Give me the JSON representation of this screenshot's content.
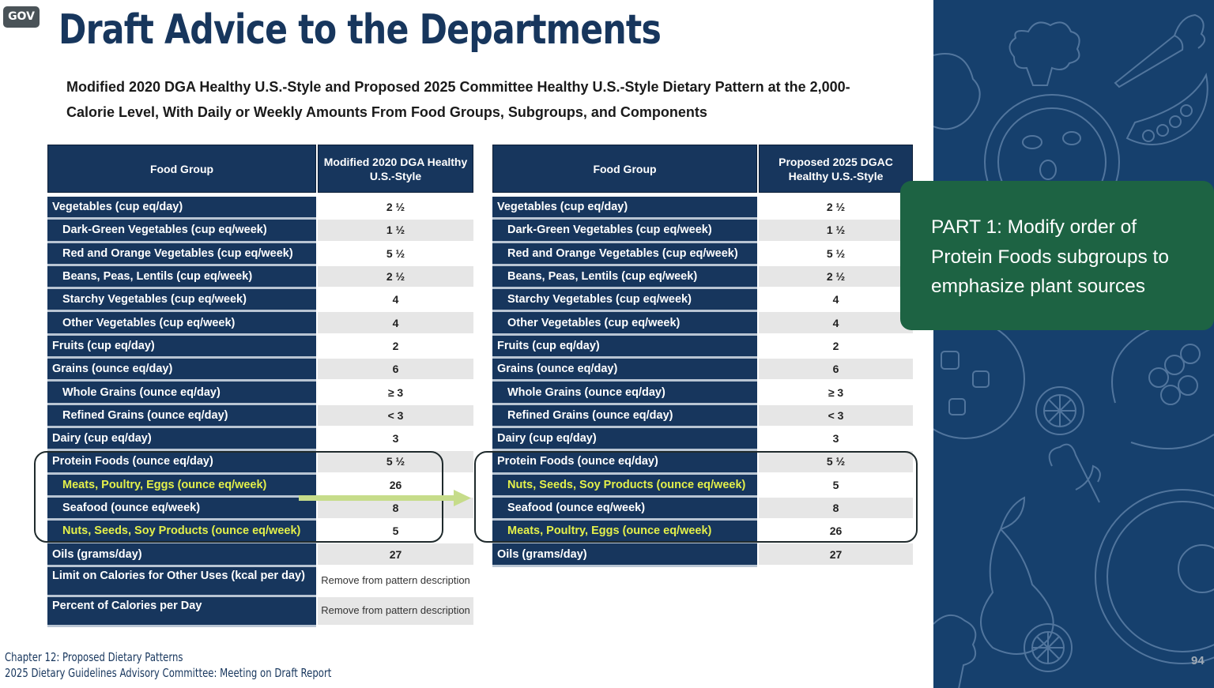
{
  "badge": "GOV",
  "title": "Draft Advice to the Departments",
  "subtitle": "Modified 2020 DGA Healthy U.S.-Style and Proposed 2025 Committee Healthy U.S.-Style Dietary Pattern at the 2,000-Calorie Level, With Daily or Weekly Amounts From Food Groups, Subgroups, and Components",
  "colors": {
    "navy": "#17365d",
    "highlight_text": "#e4f04a",
    "callout_green": "#1d6343",
    "sidebar_blue": "#16406d",
    "arrow_green": "#c6dc8a"
  },
  "left_table": {
    "header": {
      "col1": "Food Group",
      "col2": "Modified 2020 DGA Healthy U.S.-Style"
    },
    "rows": [
      {
        "label": "Vegetables (cup eq/day)",
        "value": "2 ½"
      },
      {
        "label": "Dark-Green Vegetables (cup eq/week)",
        "value": "1 ½"
      },
      {
        "label": "Red and Orange Vegetables (cup eq/week)",
        "value": "5 ½"
      },
      {
        "label": "Beans, Peas, Lentils (cup eq/week)",
        "value": "2 ½"
      },
      {
        "label": "Starchy Vegetables (cup eq/week)",
        "value": "4"
      },
      {
        "label": "Other Vegetables (cup eq/week)",
        "value": "4"
      },
      {
        "label": "Fruits (cup eq/day)",
        "value": "2"
      },
      {
        "label": "Grains (ounce eq/day)",
        "value": "6"
      },
      {
        "label": "Whole Grains (ounce eq/day)",
        "value": "≥ 3"
      },
      {
        "label": "Refined Grains (ounce eq/day)",
        "value": "< 3"
      },
      {
        "label": "Dairy (cup eq/day)",
        "value": "3"
      },
      {
        "label": "Protein Foods (ounce eq/day)",
        "value": "5 ½"
      },
      {
        "label": "Meats, Poultry, Eggs (ounce eq/week)",
        "value": "26"
      },
      {
        "label": "Seafood (ounce eq/week)",
        "value": "8"
      },
      {
        "label": "Nuts, Seeds, Soy Products (ounce eq/week)",
        "value": "5"
      },
      {
        "label": "Oils (grams/day)",
        "value": "27"
      },
      {
        "label": "Limit on Calories for Other Uses (kcal per day)",
        "value": "Remove from pattern description"
      },
      {
        "label": "Percent of Calories per Day",
        "value": "Remove from pattern description"
      }
    ]
  },
  "right_table": {
    "header": {
      "col1": "Food Group",
      "col2": "Proposed 2025 DGAC Healthy U.S.-Style"
    },
    "rows": [
      {
        "label": "Vegetables (cup eq/day)",
        "value": "2 ½"
      },
      {
        "label": "Dark-Green Vegetables (cup eq/week)",
        "value": "1 ½"
      },
      {
        "label": "Red and Orange Vegetables (cup eq/week)",
        "value": "5 ½"
      },
      {
        "label": "Beans, Peas, Lentils (cup eq/week)",
        "value": "2 ½"
      },
      {
        "label": "Starchy Vegetables (cup eq/week)",
        "value": "4"
      },
      {
        "label": "Other Vegetables (cup eq/week)",
        "value": "4"
      },
      {
        "label": "Fruits (cup eq/day)",
        "value": "2"
      },
      {
        "label": "Grains (ounce eq/day)",
        "value": "6"
      },
      {
        "label": "Whole Grains (ounce eq/day)",
        "value": "≥ 3"
      },
      {
        "label": "Refined Grains (ounce eq/day)",
        "value": "< 3"
      },
      {
        "label": "Dairy (cup eq/day)",
        "value": "3"
      },
      {
        "label": "Protein Foods (ounce eq/day)",
        "value": "5 ½"
      },
      {
        "label": "Nuts, Seeds, Soy Products (ounce eq/week)",
        "value": "5"
      },
      {
        "label": "Seafood (ounce eq/week)",
        "value": "8"
      },
      {
        "label": "Meats, Poultry, Eggs (ounce eq/week)",
        "value": "26"
      },
      {
        "label": "Oils (grams/day)",
        "value": "27"
      }
    ]
  },
  "callout": "PART 1: Modify order of Protein Foods subgroups to emphasize plant sources",
  "page_number": "94",
  "footer": {
    "line1": "Chapter 12: Proposed Dietary Patterns",
    "line2": "2025 Dietary Guidelines Advisory Committee: Meeting on Draft Report"
  }
}
